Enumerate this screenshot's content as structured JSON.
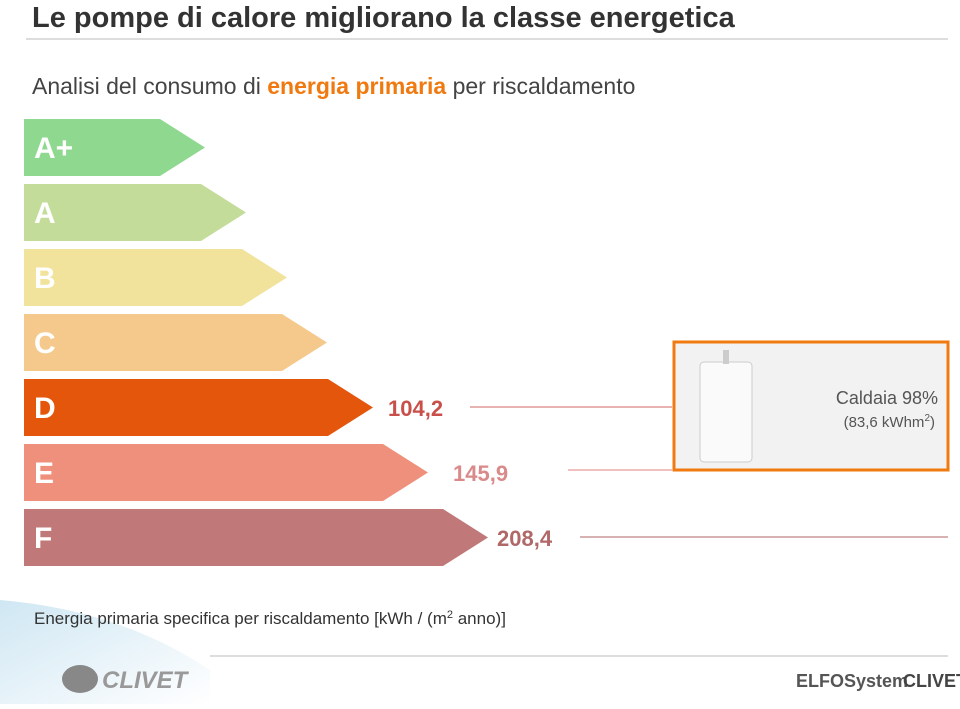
{
  "header": {
    "title": "Le pompe di calore migliorano la classe energetica",
    "subtitle": {
      "before": "Analisi del consumo di",
      "highlight": "energia primaria",
      "after": "per riscaldamento"
    }
  },
  "classes": [
    "A+",
    "A",
    "B",
    "C",
    "D",
    "E",
    "F"
  ],
  "readings": [
    {
      "class": "D",
      "value": "104,2"
    },
    {
      "class": "E",
      "value": "145,9"
    },
    {
      "class": "F",
      "value": "208,4"
    }
  ],
  "boiler": {
    "name": "Caldaia 98%",
    "detail": "(83,6 kWhm",
    "detail_sup": "2",
    "detail_end": ")"
  },
  "footnote": {
    "text": "Energia primaria specifica per riscaldamento [kWh / (m",
    "sup": "2",
    "end": " anno)]"
  },
  "logos": {
    "left": "CLIVET",
    "right_1": "ELFOSystem",
    "right_2": "CLIVET"
  }
}
